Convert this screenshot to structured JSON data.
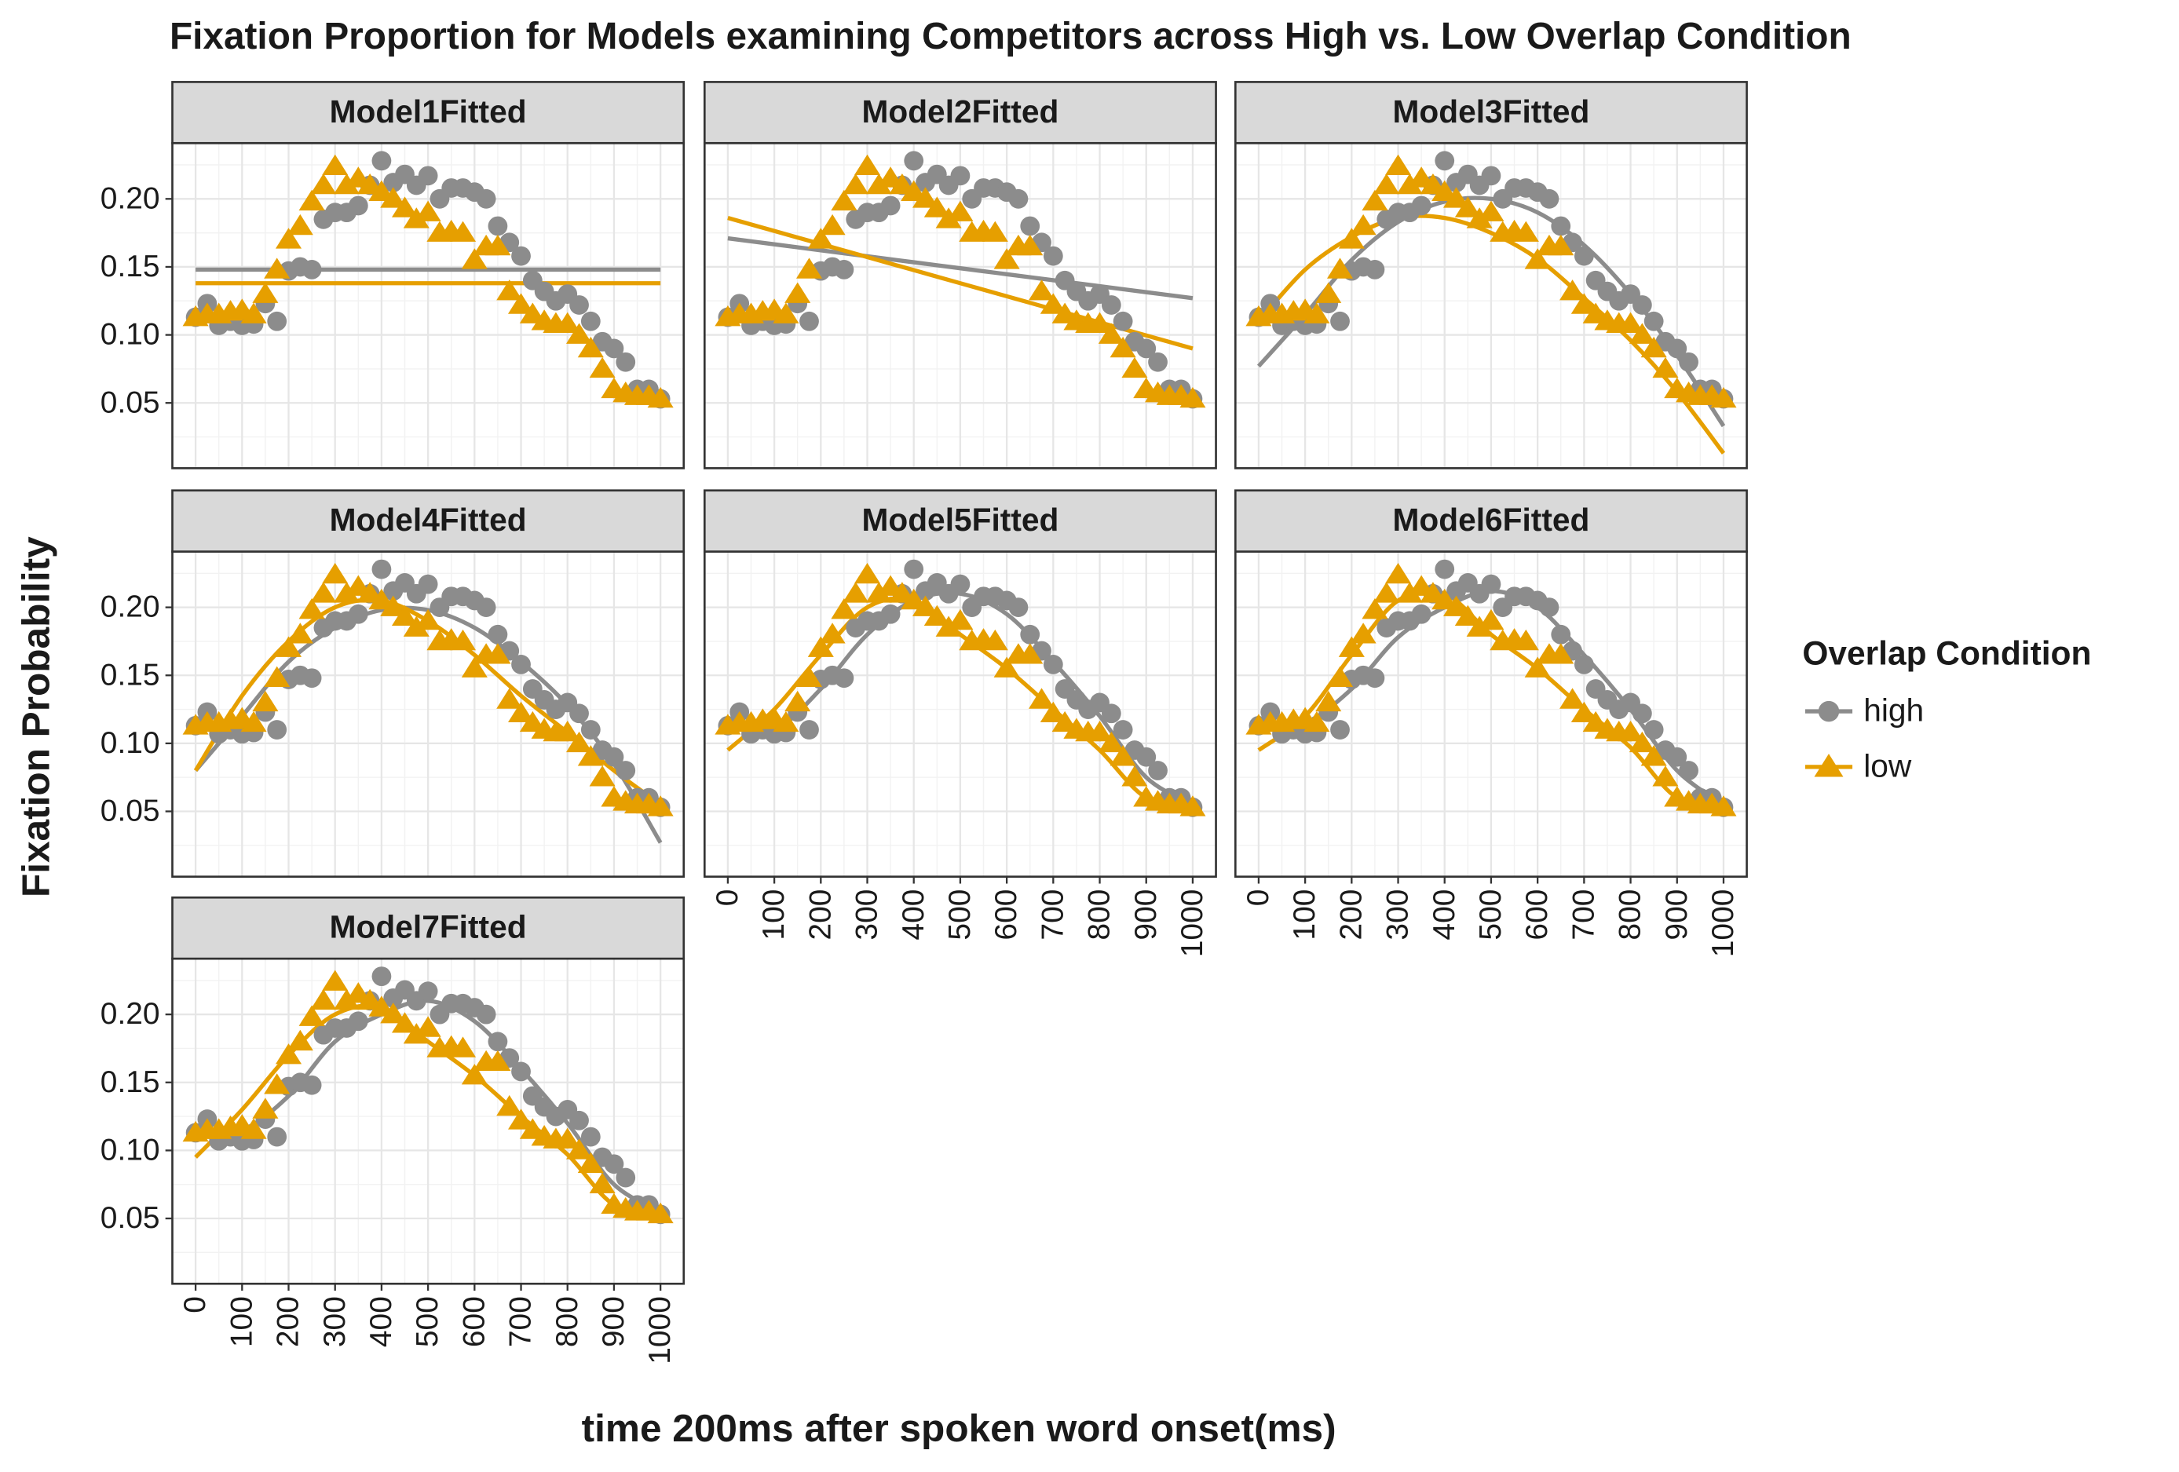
{
  "chart_data": {
    "type": "line",
    "title": "Fixation Proportion for Models examining Competitors across High vs. Low Overlap Condition",
    "x_label": "time 200ms after spoken word onset(ms)",
    "y_label": "Fixation Probability",
    "legend_title": "Overlap Condition",
    "legend_position": "right",
    "grid": true,
    "xlim": [
      -50,
      1050
    ],
    "ylim": [
      0.002,
      0.241
    ],
    "xticks": [
      0,
      100,
      200,
      300,
      400,
      500,
      600,
      700,
      800,
      900,
      1000
    ],
    "yticks": [
      0.05,
      {
        "value": 0.1,
        "label": "0.10"
      },
      0.15,
      {
        "value": 0.2,
        "label": "0.20"
      }
    ],
    "x": [
      0,
      25,
      50,
      75,
      100,
      125,
      150,
      175,
      200,
      225,
      250,
      275,
      300,
      325,
      350,
      375,
      400,
      425,
      450,
      475,
      500,
      525,
      550,
      575,
      600,
      625,
      650,
      675,
      700,
      725,
      750,
      775,
      800,
      825,
      850,
      875,
      900,
      925,
      950,
      975,
      1000
    ],
    "series": [
      {
        "name": "high",
        "color": "#8c8c8c",
        "marker": "circle",
        "values": [
          0.113,
          0.123,
          0.107,
          0.11,
          0.107,
          0.108,
          0.123,
          0.11,
          0.147,
          0.15,
          0.148,
          0.185,
          0.19,
          0.19,
          0.195,
          0.21,
          0.228,
          0.212,
          0.218,
          0.21,
          0.217,
          0.2,
          0.208,
          0.208,
          0.205,
          0.2,
          0.18,
          0.168,
          0.158,
          0.14,
          0.132,
          0.125,
          0.13,
          0.122,
          0.11,
          0.095,
          0.09,
          0.08,
          0.06,
          0.06,
          0.053
        ]
      },
      {
        "name": "low",
        "color": "#e69f00",
        "marker": "triangle",
        "values": [
          0.113,
          0.115,
          0.115,
          0.117,
          0.118,
          0.115,
          0.13,
          0.148,
          0.17,
          0.18,
          0.198,
          0.21,
          0.224,
          0.21,
          0.215,
          0.21,
          0.205,
          0.2,
          0.193,
          0.185,
          0.19,
          0.175,
          0.176,
          0.175,
          0.155,
          0.165,
          0.165,
          0.132,
          0.122,
          0.115,
          0.11,
          0.108,
          0.108,
          0.1,
          0.09,
          0.075,
          0.06,
          0.057,
          0.055,
          0.055,
          0.053
        ]
      }
    ],
    "fit_x": [
      0,
      100,
      200,
      300,
      400,
      500,
      600,
      700,
      800,
      900,
      1000
    ],
    "panels": [
      {
        "title": "Model1Fitted",
        "fits": [
          [
            0.148,
            0.148,
            0.148,
            0.148,
            0.148,
            0.148,
            0.148,
            0.148,
            0.148,
            0.148,
            0.148
          ],
          [
            0.138,
            0.138,
            0.138,
            0.138,
            0.138,
            0.138,
            0.138,
            0.138,
            0.138,
            0.138,
            0.138
          ]
        ]
      },
      {
        "title": "Model2Fitted",
        "fits": [
          [
            0.171,
            0.1666,
            0.1622,
            0.1578,
            0.1534,
            0.149,
            0.1446,
            0.1402,
            0.1358,
            0.1314,
            0.127
          ],
          [
            0.186,
            0.1764,
            0.1668,
            0.1572,
            0.1476,
            0.138,
            0.1284,
            0.1188,
            0.1092,
            0.0996,
            0.09
          ]
        ]
      },
      {
        "title": "Model3Fitted",
        "fits": [
          [
            0.077,
            0.115,
            0.155,
            0.183,
            0.198,
            0.2,
            0.19,
            0.166,
            0.13,
            0.085,
            0.033
          ],
          [
            0.11,
            0.148,
            0.172,
            0.186,
            0.186,
            0.175,
            0.156,
            0.127,
            0.096,
            0.058,
            0.013
          ]
        ]
      },
      {
        "title": "Model4Fitted",
        "fits": [
          [
            0.08,
            0.12,
            0.16,
            0.185,
            0.198,
            0.198,
            0.185,
            0.16,
            0.128,
            0.085,
            0.027
          ],
          [
            0.08,
            0.135,
            0.175,
            0.2,
            0.205,
            0.19,
            0.165,
            0.135,
            0.108,
            0.08,
            0.055
          ]
        ]
      },
      {
        "title": "Model5Fitted",
        "fits": [
          [
            0.113,
            0.11,
            0.14,
            0.18,
            0.205,
            0.21,
            0.195,
            0.16,
            0.12,
            0.075,
            0.055
          ],
          [
            0.095,
            0.125,
            0.165,
            0.2,
            0.205,
            0.18,
            0.155,
            0.125,
            0.095,
            0.06,
            0.055
          ]
        ]
      },
      {
        "title": "Model6Fitted",
        "fits": [
          [
            0.11,
            0.115,
            0.14,
            0.178,
            0.2,
            0.212,
            0.2,
            0.165,
            0.125,
            0.08,
            0.055
          ],
          [
            0.095,
            0.12,
            0.165,
            0.205,
            0.21,
            0.18,
            0.155,
            0.125,
            0.097,
            0.06,
            0.055
          ]
        ]
      },
      {
        "title": "Model7Fitted",
        "fits": [
          [
            0.113,
            0.115,
            0.14,
            0.18,
            0.2,
            0.21,
            0.195,
            0.16,
            0.12,
            0.075,
            0.055
          ],
          [
            0.095,
            0.13,
            0.17,
            0.2,
            0.205,
            0.18,
            0.155,
            0.125,
            0.097,
            0.06,
            0.055
          ]
        ]
      }
    ]
  }
}
